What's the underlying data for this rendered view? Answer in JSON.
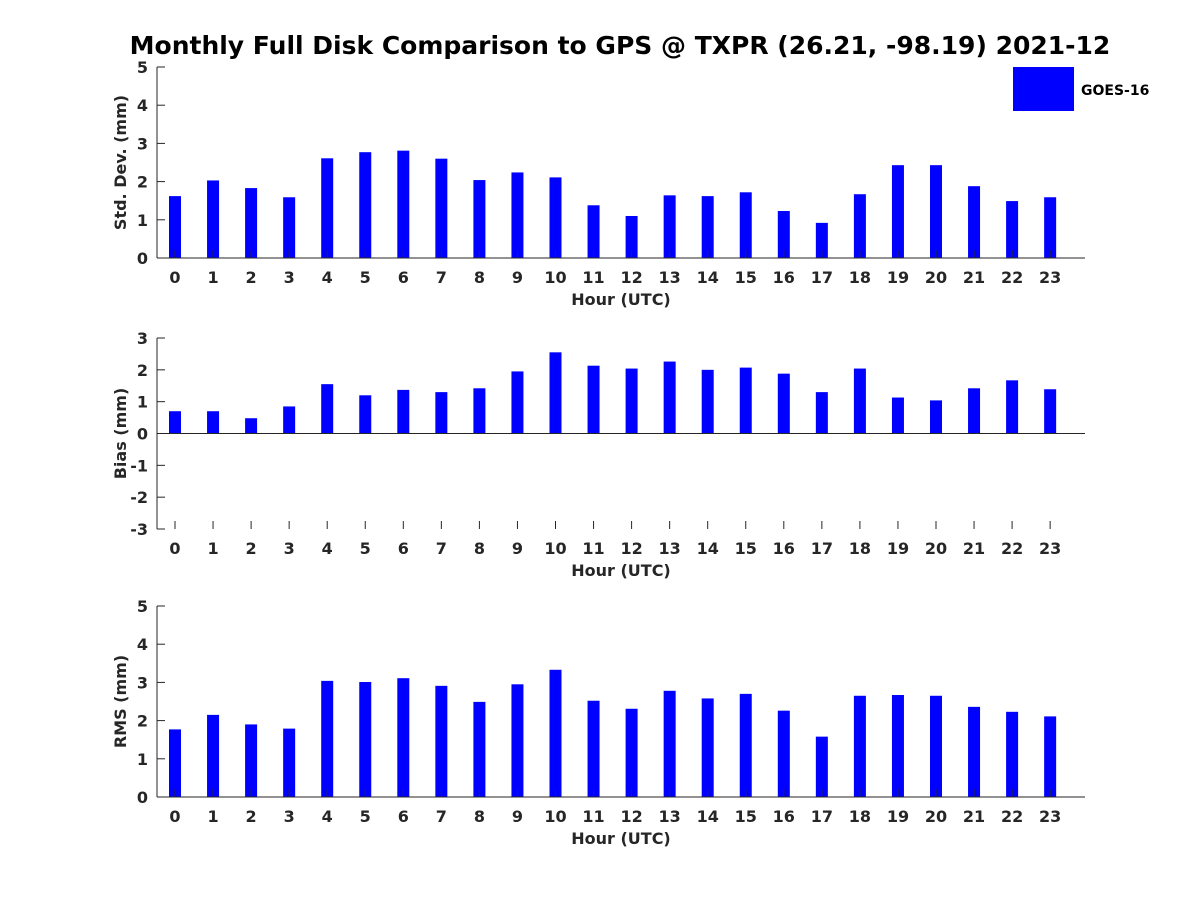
{
  "title": "Monthly Full Disk Comparison to GPS @ TXPR (26.21, -98.19) 2021-12",
  "legend": {
    "label": "GOES-16",
    "color": "#0000ff"
  },
  "bar_color": "#0000ff",
  "chart_data": [
    {
      "type": "bar",
      "name": "std-dev",
      "xlabel": "Hour (UTC)",
      "ylabel": "Std. Dev. (mm)",
      "ylim": [
        0,
        5
      ],
      "yticks": [
        0,
        1,
        2,
        3,
        4,
        5
      ],
      "categories": [
        "0",
        "1",
        "2",
        "3",
        "4",
        "5",
        "6",
        "7",
        "8",
        "9",
        "10",
        "11",
        "12",
        "13",
        "14",
        "15",
        "16",
        "17",
        "18",
        "19",
        "20",
        "21",
        "22",
        "23"
      ],
      "series": [
        {
          "name": "GOES-16",
          "values": [
            1.62,
            2.03,
            1.83,
            1.59,
            2.61,
            2.77,
            2.81,
            2.6,
            2.04,
            2.24,
            2.11,
            1.38,
            1.1,
            1.64,
            1.62,
            1.72,
            1.23,
            0.92,
            1.67,
            2.43,
            2.43,
            1.88,
            1.49,
            1.59
          ]
        }
      ]
    },
    {
      "type": "bar",
      "name": "bias",
      "xlabel": "Hour (UTC)",
      "ylabel": "Bias (mm)",
      "ylim": [
        -3,
        3
      ],
      "yticks": [
        -3,
        -2,
        -1,
        0,
        1,
        2,
        3
      ],
      "categories": [
        "0",
        "1",
        "2",
        "3",
        "4",
        "5",
        "6",
        "7",
        "8",
        "9",
        "10",
        "11",
        "12",
        "13",
        "14",
        "15",
        "16",
        "17",
        "18",
        "19",
        "20",
        "21",
        "22",
        "23"
      ],
      "series": [
        {
          "name": "GOES-16",
          "values": [
            0.7,
            0.7,
            0.48,
            0.85,
            1.55,
            1.2,
            1.37,
            1.3,
            1.42,
            1.95,
            2.55,
            2.13,
            2.04,
            2.26,
            2.0,
            2.07,
            1.88,
            1.3,
            2.04,
            1.13,
            1.04,
            1.42,
            1.67,
            1.39
          ]
        }
      ]
    },
    {
      "type": "bar",
      "name": "rms",
      "xlabel": "Hour (UTC)",
      "ylabel": "RMS (mm)",
      "ylim": [
        0,
        5
      ],
      "yticks": [
        0,
        1,
        2,
        3,
        4,
        5
      ],
      "categories": [
        "0",
        "1",
        "2",
        "3",
        "4",
        "5",
        "6",
        "7",
        "8",
        "9",
        "10",
        "11",
        "12",
        "13",
        "14",
        "15",
        "16",
        "17",
        "18",
        "19",
        "20",
        "21",
        "22",
        "23"
      ],
      "series": [
        {
          "name": "GOES-16",
          "values": [
            1.77,
            2.15,
            1.9,
            1.79,
            3.04,
            3.01,
            3.11,
            2.91,
            2.49,
            2.95,
            3.33,
            2.52,
            2.31,
            2.78,
            2.58,
            2.7,
            2.26,
            1.58,
            2.65,
            2.67,
            2.65,
            2.36,
            2.23,
            2.11
          ]
        }
      ]
    }
  ]
}
